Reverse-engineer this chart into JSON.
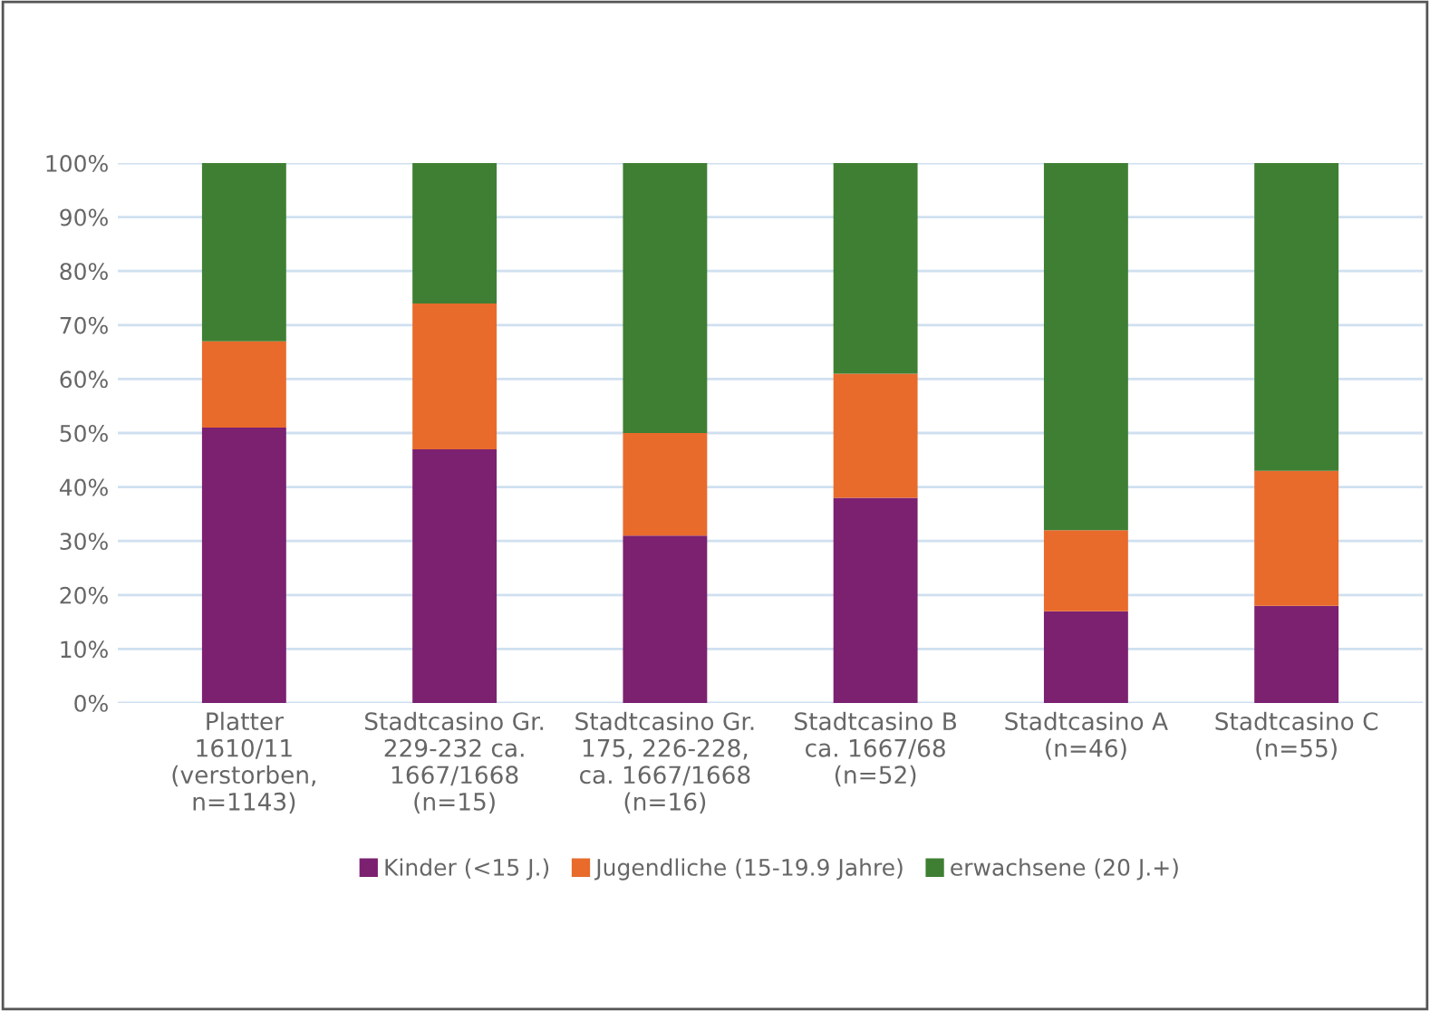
{
  "chart_data": {
    "type": "bar",
    "stacked": true,
    "categories": [
      "Platter\n1610/11\n(verstorben,\nn=1143)",
      "Stadtcasino Gr.\n229-232 ca.\n1667/1668\n(n=15)",
      "Stadtcasino Gr.\n175, 226-228,\nca. 1667/1668\n(n=16)",
      "Stadtcasino B\nca. 1667/68\n(n=52)",
      "Stadtcasino A\n(n=46)",
      "Stadtcasino C\n(n=55)"
    ],
    "series": [
      {
        "name": "Kinder (<15 J.)",
        "color": "#7b2170",
        "values": [
          51,
          47,
          31,
          38,
          17,
          18
        ]
      },
      {
        "name": "Jugendliche (15-19.9 Jahre)",
        "color": "#e86b2c",
        "values": [
          16,
          27,
          19,
          23,
          15,
          25
        ]
      },
      {
        "name": "erwachsene (20 J.+)",
        "color": "#3f7f33",
        "values": [
          33,
          26,
          50,
          39,
          68,
          57
        ]
      }
    ],
    "ylim": [
      0,
      100
    ],
    "yticks": [
      {
        "value": 0,
        "label": "0%"
      },
      {
        "value": 10,
        "label": "10%"
      },
      {
        "value": 20,
        "label": "20%"
      },
      {
        "value": 30,
        "label": "30%"
      },
      {
        "value": 40,
        "label": "40%"
      },
      {
        "value": 50,
        "label": "50%"
      },
      {
        "value": 60,
        "label": "60%"
      },
      {
        "value": 70,
        "label": "70%"
      },
      {
        "value": 80,
        "label": "80%"
      },
      {
        "value": 90,
        "label": "90%"
      },
      {
        "value": 100,
        "label": "100%"
      }
    ],
    "grid": "y",
    "legend": "bottom"
  }
}
